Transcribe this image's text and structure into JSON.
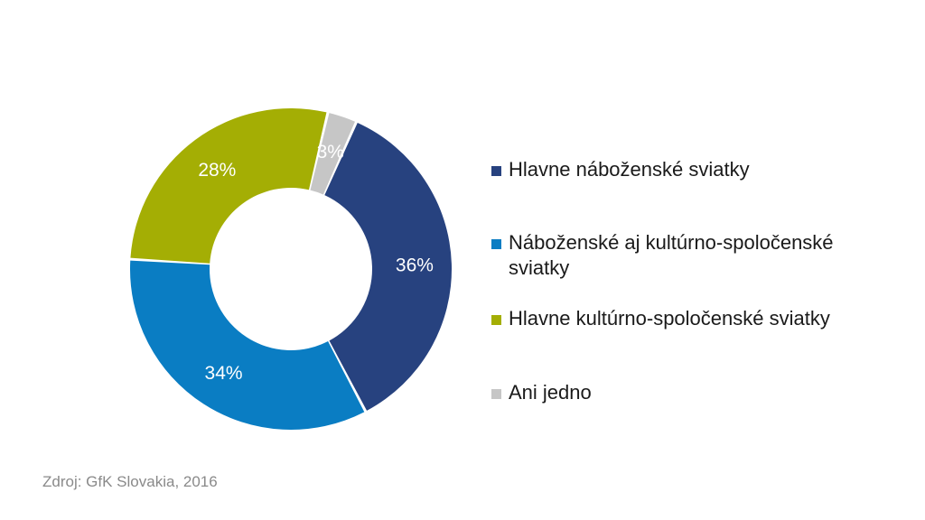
{
  "chart_data": {
    "type": "pie",
    "variant": "donut",
    "title": "",
    "series": [
      {
        "name": "",
        "slices": [
          {
            "label": "Hlavne náboženské sviatky",
            "value": 36,
            "value_label": "36%",
            "color": "#27427f"
          },
          {
            "label": "Náboženské aj kultúrno-spoločenské sviatky",
            "value": 34,
            "value_label": "34%",
            "color": "#0a7dc3"
          },
          {
            "label": "Hlavne kultúrno-spoločenské sviatky",
            "value": 28,
            "value_label": "28%",
            "color": "#a4ae04"
          },
          {
            "label": "Ani jedno",
            "value": 3,
            "value_label": "3%",
            "color": "#c6c6c6"
          }
        ]
      }
    ],
    "legend_position": "right"
  },
  "legend": [
    {
      "label": "Hlavne náboženské sviatky",
      "color": "#27427f"
    },
    {
      "label": "Náboženské aj kultúrno-spoločenské sviatky",
      "color": "#0a7dc3"
    },
    {
      "label": "Hlavne kultúrno-spoločenské sviatky",
      "color": "#a4ae04"
    },
    {
      "label": "Ani jedno",
      "color": "#c6c6c6"
    }
  ],
  "source": "Zdroj: GfK Slovakia, 2016"
}
